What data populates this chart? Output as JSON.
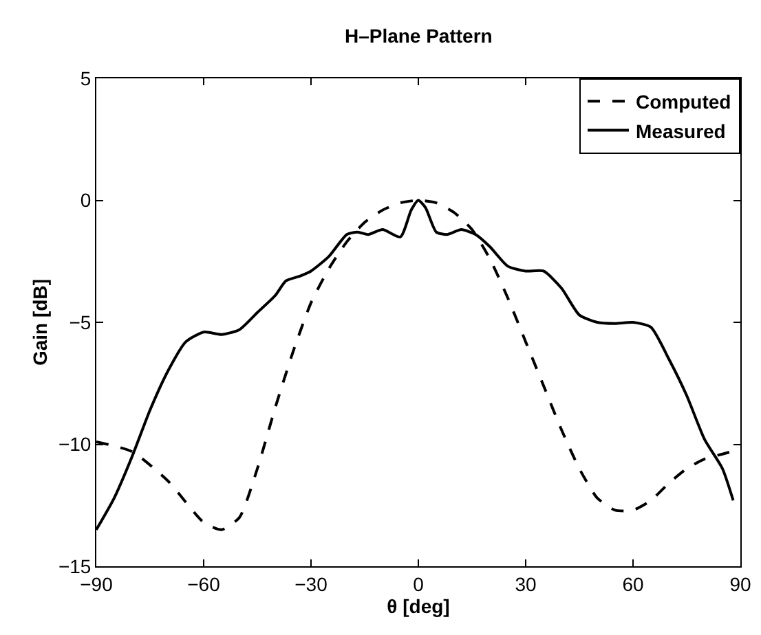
{
  "chart_data": {
    "type": "line",
    "title": "H–Plane Pattern",
    "xlabel": "θ [deg]",
    "ylabel": "Gain [dB]",
    "xlim": [
      -90,
      90
    ],
    "xticks": [
      {
        "value": -90,
        "label": "−90"
      },
      {
        "value": -60,
        "label": "−60"
      },
      {
        "value": -30,
        "label": "−30"
      },
      0,
      30,
      60,
      90
    ],
    "ylim": [
      -15,
      5
    ],
    "yticks": [
      {
        "value": -15,
        "label": "−15"
      },
      {
        "value": -10,
        "label": "−10"
      },
      {
        "value": -5,
        "label": "−5"
      },
      0,
      5
    ],
    "grid": false,
    "legend": "top right",
    "series": [
      {
        "name": "Computed",
        "color": "#000000",
        "line_style": "dashed",
        "x": [
          -90,
          -80,
          -70,
          -60,
          -55,
          -50,
          -45,
          -40,
          -35,
          -30,
          -25,
          -20,
          -15,
          -10,
          -5,
          0,
          5,
          10,
          15,
          20,
          25,
          30,
          35,
          40,
          45,
          50,
          55,
          60,
          65,
          70,
          75,
          80,
          85,
          90
        ],
        "values": [
          -9.9,
          -10.3,
          -11.5,
          -13.2,
          -13.5,
          -13.0,
          -11.0,
          -8.5,
          -6.2,
          -4.2,
          -2.8,
          -1.7,
          -0.9,
          -0.4,
          -0.1,
          0,
          -0.1,
          -0.5,
          -1.2,
          -2.4,
          -4.0,
          -5.8,
          -7.6,
          -9.4,
          -11.0,
          -12.2,
          -12.7,
          -12.7,
          -12.3,
          -11.6,
          -11.0,
          -10.6,
          -10.4,
          -10.2
        ]
      },
      {
        "name": "Measured",
        "color": "#000000",
        "line_style": "solid",
        "x": [
          -90,
          -85,
          -80,
          -75,
          -70,
          -65,
          -60,
          -55,
          -50,
          -45,
          -40,
          -37,
          -33,
          -30,
          -25,
          -20,
          -17,
          -14,
          -10,
          -5,
          -2,
          0,
          2,
          5,
          8,
          12,
          16,
          20,
          25,
          30,
          35,
          40,
          45,
          50,
          55,
          60,
          65,
          70,
          75,
          80,
          85,
          88
        ],
        "values": [
          -13.5,
          -12.2,
          -10.5,
          -8.6,
          -7.0,
          -5.8,
          -5.4,
          -5.5,
          -5.3,
          -4.6,
          -3.9,
          -3.3,
          -3.1,
          -2.9,
          -2.3,
          -1.4,
          -1.3,
          -1.4,
          -1.2,
          -1.5,
          -0.4,
          0,
          -0.3,
          -1.3,
          -1.4,
          -1.2,
          -1.4,
          -1.9,
          -2.7,
          -2.9,
          -2.9,
          -3.6,
          -4.7,
          -5.0,
          -5.05,
          -5.0,
          -5.2,
          -6.5,
          -8.0,
          -9.8,
          -11.0,
          -12.3
        ]
      }
    ]
  }
}
